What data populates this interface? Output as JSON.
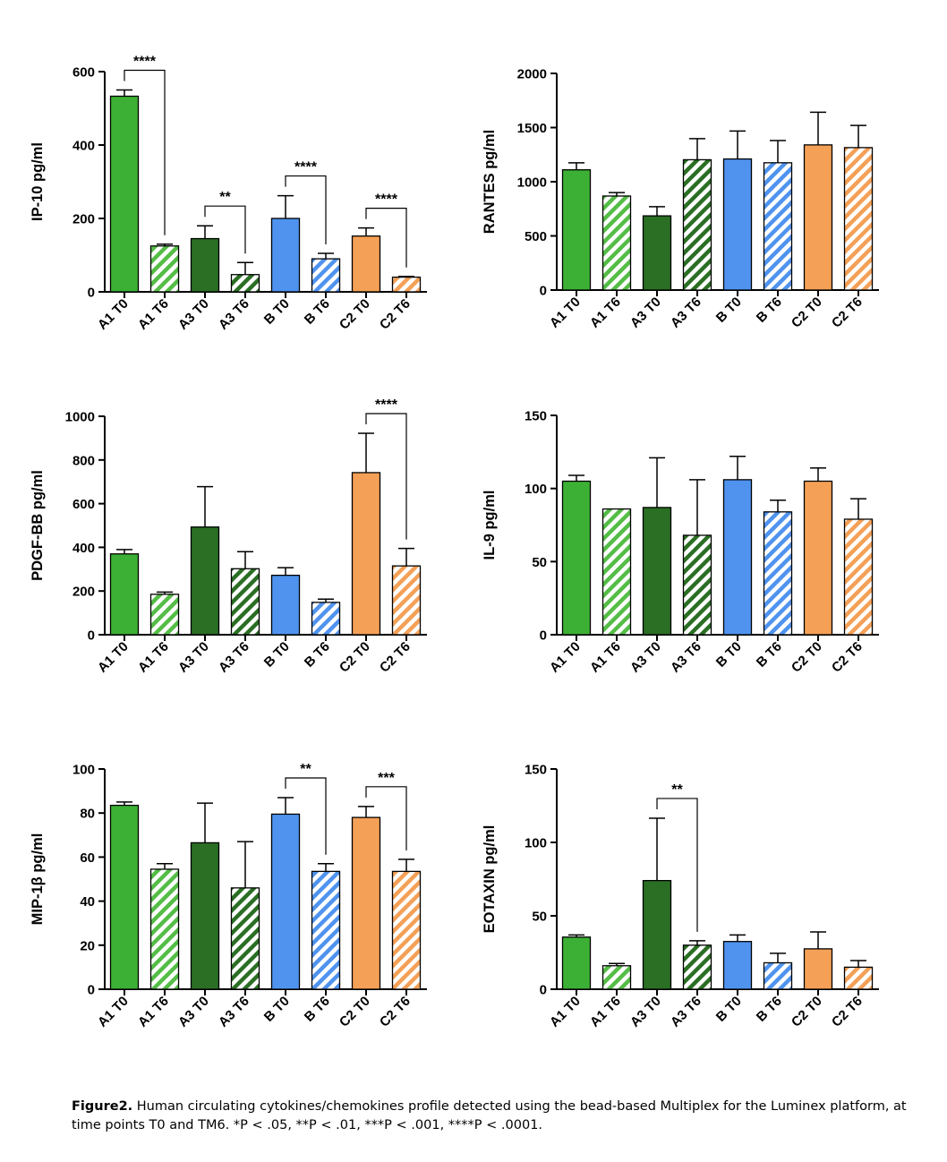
{
  "colors": {
    "A1": "#3cb034",
    "A3": "#2a6f24",
    "B": "#4f93ef",
    "C2": "#f4a057",
    "A1_hatch": "#54bd46",
    "axis": "#000000"
  },
  "categories": [
    "A1 T0",
    "A1 T6",
    "A3 T0",
    "A3 T6",
    "B T0",
    "B T6",
    "C2 T0",
    "C2 T6"
  ],
  "caption": {
    "label": "Figure2.",
    "text": " Human circulating cytokines/chemokines profile detected using the bead-based Multiplex for the Luminex platform, at time points T0 and TM6. *P < .05, **P < .01, ***P < .001, ****P < .0001."
  },
  "chart_data": [
    {
      "type": "bar",
      "ylabel": "IP-10 pg/ml",
      "ylim": [
        0,
        600
      ],
      "yticks": [
        0,
        200,
        400,
        600
      ],
      "categories": [
        "A1 T0",
        "A1 T6",
        "A3 T0",
        "A3 T6",
        "B T0",
        "B T6",
        "C2 T0",
        "C2 T6"
      ],
      "values": [
        533,
        125,
        145,
        47,
        200,
        90,
        152,
        40
      ],
      "errors": [
        17,
        5,
        35,
        33,
        62,
        15,
        22,
        2
      ],
      "significance": [
        {
          "from": 0,
          "to": 1,
          "label": "****"
        },
        {
          "from": 2,
          "to": 3,
          "label": "**"
        },
        {
          "from": 4,
          "to": 5,
          "label": "****"
        },
        {
          "from": 6,
          "to": 7,
          "label": "****"
        }
      ]
    },
    {
      "type": "bar",
      "ylabel": "RANTES pg/ml",
      "ylim": [
        0,
        2000
      ],
      "yticks": [
        0,
        500,
        1000,
        1500,
        2000
      ],
      "categories": [
        "A1 T0",
        "A1 T6",
        "A3 T0",
        "A3 T6",
        "B T0",
        "B T6",
        "C2 T0",
        "C2 T6"
      ],
      "values": [
        1110,
        868,
        685,
        1203,
        1210,
        1175,
        1340,
        1315
      ],
      "errors": [
        65,
        32,
        85,
        195,
        258,
        205,
        302,
        205
      ],
      "significance": []
    },
    {
      "type": "bar",
      "ylabel": "PDGF-BB pg/ml",
      "ylim": [
        0,
        1000
      ],
      "yticks": [
        0,
        200,
        400,
        600,
        800,
        1000
      ],
      "categories": [
        "A1 T0",
        "A1 T6",
        "A3 T0",
        "A3 T6",
        "B T0",
        "B T6",
        "C2 T0",
        "C2 T6"
      ],
      "values": [
        370,
        185,
        493,
        302,
        272,
        148,
        742,
        315
      ],
      "errors": [
        20,
        10,
        185,
        78,
        35,
        15,
        180,
        80
      ],
      "significance": [
        {
          "from": 6,
          "to": 7,
          "label": "****"
        }
      ]
    },
    {
      "type": "bar",
      "ylabel": "IL-9 pg/ml",
      "ylim": [
        0,
        150
      ],
      "yticks": [
        0,
        50,
        100,
        150
      ],
      "categories": [
        "A1 T0",
        "A1 T6",
        "A3 T0",
        "A3 T6",
        "B T0",
        "B T6",
        "C2 T0",
        "C2 T6"
      ],
      "values": [
        105,
        86,
        87,
        68,
        106,
        84,
        105,
        79
      ],
      "errors": [
        4,
        0,
        34,
        38,
        16,
        8,
        9,
        14
      ],
      "significance": []
    },
    {
      "type": "bar",
      "ylabel": "MIP-1β pg/ml",
      "ylim": [
        0,
        100
      ],
      "yticks": [
        0,
        20,
        40,
        60,
        80,
        100
      ],
      "categories": [
        "A1 T0",
        "A1 T6",
        "A3 T0",
        "A3 T6",
        "B T0",
        "B T6",
        "C2 T0",
        "C2 T6"
      ],
      "values": [
        83.5,
        54.5,
        66.5,
        46,
        79.5,
        53.5,
        78,
        53.5
      ],
      "errors": [
        1.5,
        2.5,
        18,
        21,
        7.5,
        3.5,
        5,
        5.5
      ],
      "significance": [
        {
          "from": 4,
          "to": 5,
          "label": "**"
        },
        {
          "from": 6,
          "to": 7,
          "label": "***"
        }
      ]
    },
    {
      "type": "bar",
      "ylabel": "EOTAXIN pg/ml",
      "ylim": [
        0,
        150
      ],
      "yticks": [
        0,
        50,
        100,
        150
      ],
      "categories": [
        "A1 T0",
        "A1 T6",
        "A3 T0",
        "A3 T6",
        "B T0",
        "B T6",
        "C2 T0",
        "C2 T6"
      ],
      "values": [
        35.5,
        16,
        74,
        30,
        32.5,
        18,
        27.5,
        15
      ],
      "errors": [
        1.5,
        1.5,
        42.5,
        3,
        4.5,
        6.5,
        11.5,
        4.5
      ],
      "significance": [
        {
          "from": 2,
          "to": 3,
          "label": "**"
        }
      ]
    }
  ]
}
